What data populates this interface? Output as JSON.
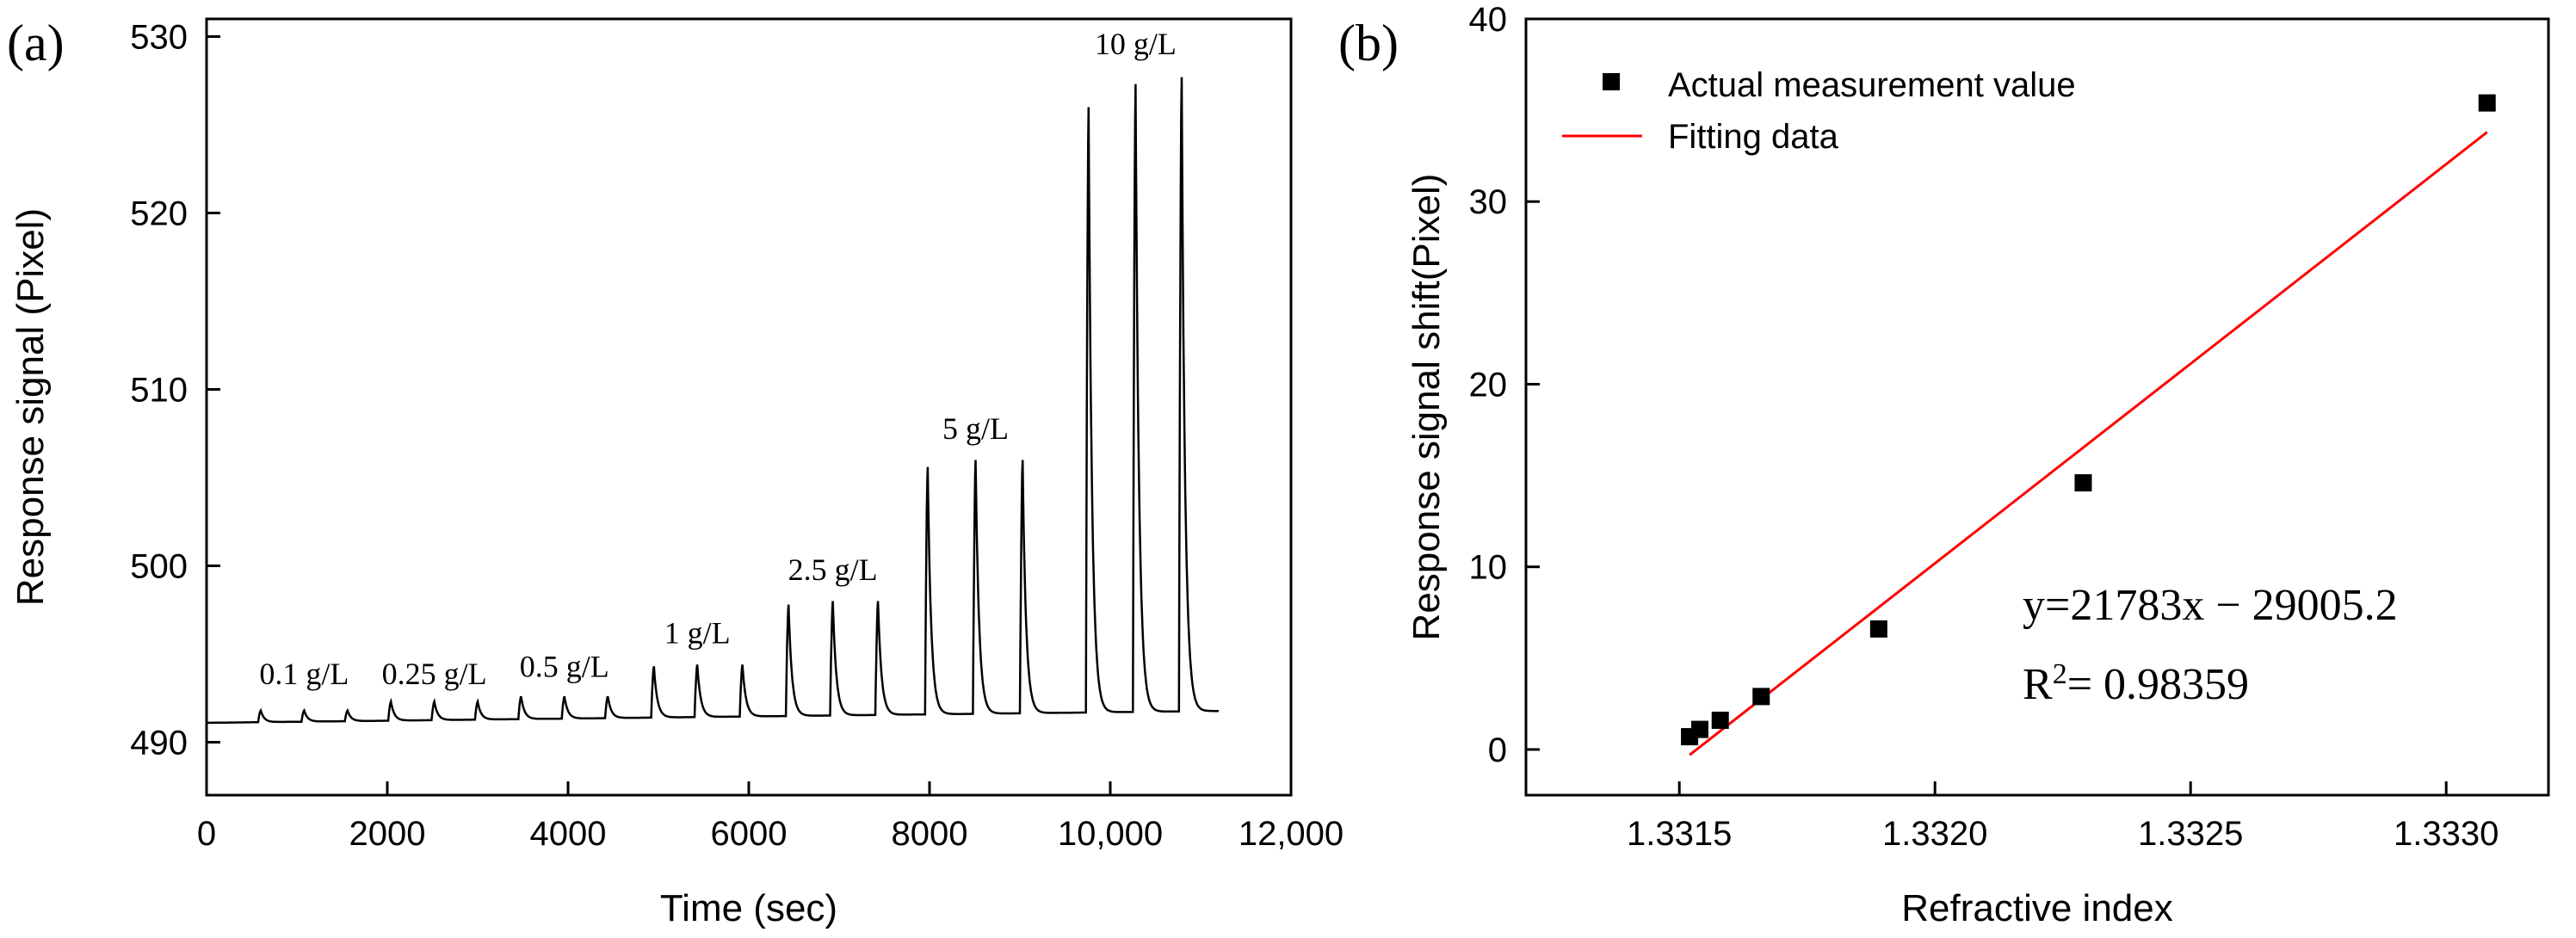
{
  "chart_data": [
    {
      "panel": "(a)",
      "type": "line",
      "xlabel": "Time (sec)",
      "ylabel": "Response signal (Pixel)",
      "xlim": [
        0,
        12000
      ],
      "ylim": [
        487,
        531
      ],
      "xticks": [
        {
          "value": 0,
          "label": "0"
        },
        {
          "value": 2000,
          "label": "2000"
        },
        {
          "value": 4000,
          "label": "4000"
        },
        {
          "value": 6000,
          "label": "6000"
        },
        {
          "value": 8000,
          "label": "8000"
        },
        {
          "value": 10000,
          "label": "10,000"
        },
        {
          "value": 12000,
          "label": "12,000"
        }
      ],
      "yticks": [
        {
          "value": 490,
          "label": "490"
        },
        {
          "value": 500,
          "label": "500"
        },
        {
          "value": 510,
          "label": "510"
        },
        {
          "value": 520,
          "label": "520"
        },
        {
          "value": 530,
          "label": "530"
        }
      ],
      "baseline": 491.1,
      "end_time": 11200,
      "peaks": [
        {
          "t": 600,
          "h": 491.8
        },
        {
          "t": 1080,
          "h": 491.8
        },
        {
          "t": 1560,
          "h": 491.8
        },
        {
          "t": 2040,
          "h": 492.3
        },
        {
          "t": 2520,
          "h": 492.3
        },
        {
          "t": 3000,
          "h": 492.3
        },
        {
          "t": 3480,
          "h": 492.6
        },
        {
          "t": 3960,
          "h": 492.6
        },
        {
          "t": 4440,
          "h": 492.6
        },
        {
          "t": 4950,
          "h": 494.3
        },
        {
          "t": 5430,
          "h": 494.4
        },
        {
          "t": 5930,
          "h": 494.4
        },
        {
          "t": 6440,
          "h": 497.8
        },
        {
          "t": 6930,
          "h": 498.0
        },
        {
          "t": 7430,
          "h": 498.0
        },
        {
          "t": 7980,
          "h": 505.6
        },
        {
          "t": 8510,
          "h": 506.0
        },
        {
          "t": 9030,
          "h": 506.0
        },
        {
          "t": 9760,
          "h": 526.0
        },
        {
          "t": 10280,
          "h": 527.3
        },
        {
          "t": 10790,
          "h": 527.7
        }
      ],
      "annotations": [
        {
          "text": "0.1 g/L",
          "t": 1080,
          "y": 493.3
        },
        {
          "text": "0.25 g/L",
          "t": 2520,
          "y": 493.3
        },
        {
          "text": "0.5 g/L",
          "t": 3960,
          "y": 493.7
        },
        {
          "text": "1 g/L",
          "t": 5430,
          "y": 495.6
        },
        {
          "text": "2.5 g/L",
          "t": 6930,
          "y": 499.2
        },
        {
          "text": "5 g/L",
          "t": 8510,
          "y": 507.2
        },
        {
          "text": "10 g/L",
          "t": 10280,
          "y": 529.0
        }
      ]
    },
    {
      "panel": "(b)",
      "type": "scatter",
      "xlabel": "Refractive index",
      "ylabel": "Response signal shift(Pixel)",
      "xlim": [
        1.3312,
        1.3332
      ],
      "ylim": [
        -2.5,
        40
      ],
      "xticks": [
        {
          "value": 1.3315,
          "label": "1.3315"
        },
        {
          "value": 1.332,
          "label": "1.3320"
        },
        {
          "value": 1.3325,
          "label": "1.3325"
        },
        {
          "value": 1.333,
          "label": "1.3330"
        }
      ],
      "yticks": [
        {
          "value": 0,
          "label": "0"
        },
        {
          "value": 10,
          "label": "10"
        },
        {
          "value": 20,
          "label": "20"
        },
        {
          "value": 30,
          "label": "30"
        },
        {
          "value": 40,
          "label": "40"
        }
      ],
      "series": [
        {
          "name": "Actual measurement value",
          "type": "scatter",
          "x": [
            1.33152,
            1.33154,
            1.33158,
            1.33166,
            1.33189,
            1.33229,
            1.33308
          ],
          "y": [
            0.7,
            1.1,
            1.6,
            2.9,
            6.6,
            14.6,
            35.4
          ]
        },
        {
          "name": "Fitting data",
          "type": "line",
          "color": "#ff0000",
          "x": [
            1.33152,
            1.33308
          ],
          "y": [
            -0.3,
            33.8
          ]
        }
      ],
      "legend_position": "top-left",
      "equation": "y=21783x − 29005.2",
      "r2_prefix": "R",
      "r2_sup": "2",
      "r2_value": "= 0.98359"
    }
  ]
}
